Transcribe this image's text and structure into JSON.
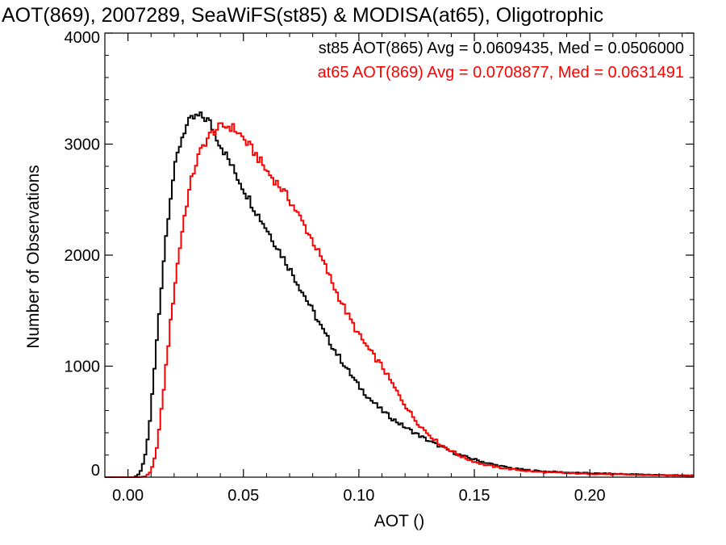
{
  "chart_data": {
    "type": "line",
    "title": "AOT(869), 2007289, SeaWiFS(st85) & MODISA(at65), Oligotrophic",
    "xlabel": "AOT ()",
    "ylabel": "Number of Observations",
    "xlim": [
      -0.01,
      0.245
    ],
    "ylim": [
      0,
      4000
    ],
    "xticks": [
      0.0,
      0.05,
      0.1,
      0.15,
      0.2
    ],
    "xtick_labels": [
      "0.00",
      "0.05",
      "0.10",
      "0.15",
      "0.20"
    ],
    "yticks": [
      0,
      1000,
      2000,
      3000,
      4000
    ],
    "ytick_labels": [
      "0",
      "1000",
      "2000",
      "3000",
      "4000"
    ],
    "legend_placement": "top-right",
    "grid": false,
    "series": [
      {
        "name": "st85 AOT(865) Avg = 0.0609435, Med = 0.0506000",
        "color": "#000000",
        "points": [
          [
            -0.01,
            0
          ],
          [
            0.0,
            0
          ],
          [
            0.003,
            0
          ],
          [
            0.005,
            30
          ],
          [
            0.007,
            140
          ],
          [
            0.009,
            400
          ],
          [
            0.011,
            850
          ],
          [
            0.013,
            1350
          ],
          [
            0.015,
            1850
          ],
          [
            0.017,
            2280
          ],
          [
            0.019,
            2620
          ],
          [
            0.021,
            2860
          ],
          [
            0.023,
            3040
          ],
          [
            0.025,
            3150
          ],
          [
            0.027,
            3210
          ],
          [
            0.029,
            3240
          ],
          [
            0.031,
            3250
          ],
          [
            0.033,
            3240
          ],
          [
            0.035,
            3210
          ],
          [
            0.037,
            3130
          ],
          [
            0.039,
            3040
          ],
          [
            0.041,
            2960
          ],
          [
            0.043,
            2880
          ],
          [
            0.045,
            2800
          ],
          [
            0.047,
            2720
          ],
          [
            0.05,
            2600
          ],
          [
            0.055,
            2410
          ],
          [
            0.06,
            2240
          ],
          [
            0.065,
            2060
          ],
          [
            0.07,
            1880
          ],
          [
            0.075,
            1690
          ],
          [
            0.08,
            1500
          ],
          [
            0.085,
            1300
          ],
          [
            0.09,
            1130
          ],
          [
            0.095,
            970
          ],
          [
            0.1,
            820
          ],
          [
            0.105,
            700
          ],
          [
            0.11,
            600
          ],
          [
            0.115,
            520
          ],
          [
            0.12,
            450
          ],
          [
            0.125,
            390
          ],
          [
            0.13,
            330
          ],
          [
            0.135,
            280
          ],
          [
            0.14,
            230
          ],
          [
            0.145,
            190
          ],
          [
            0.15,
            160
          ],
          [
            0.155,
            130
          ],
          [
            0.16,
            105
          ],
          [
            0.165,
            85
          ],
          [
            0.17,
            70
          ],
          [
            0.175,
            60
          ],
          [
            0.18,
            52
          ],
          [
            0.19,
            42
          ],
          [
            0.2,
            35
          ],
          [
            0.21,
            30
          ],
          [
            0.22,
            25
          ],
          [
            0.23,
            20
          ],
          [
            0.24,
            16
          ],
          [
            0.245,
            14
          ]
        ]
      },
      {
        "name": "at65 AOT(869) Avg = 0.0708877, Med = 0.0631491",
        "color": "#ff0000",
        "points": [
          [
            -0.01,
            0
          ],
          [
            0.0,
            0
          ],
          [
            0.005,
            0
          ],
          [
            0.008,
            10
          ],
          [
            0.01,
            50
          ],
          [
            0.012,
            200
          ],
          [
            0.014,
            500
          ],
          [
            0.016,
            900
          ],
          [
            0.018,
            1300
          ],
          [
            0.02,
            1680
          ],
          [
            0.022,
            2000
          ],
          [
            0.024,
            2290
          ],
          [
            0.026,
            2530
          ],
          [
            0.028,
            2720
          ],
          [
            0.03,
            2860
          ],
          [
            0.032,
            2960
          ],
          [
            0.034,
            3040
          ],
          [
            0.036,
            3090
          ],
          [
            0.038,
            3130
          ],
          [
            0.04,
            3150
          ],
          [
            0.042,
            3160
          ],
          [
            0.044,
            3160
          ],
          [
            0.046,
            3140
          ],
          [
            0.048,
            3100
          ],
          [
            0.05,
            3050
          ],
          [
            0.055,
            2920
          ],
          [
            0.06,
            2760
          ],
          [
            0.065,
            2640
          ],
          [
            0.07,
            2500
          ],
          [
            0.075,
            2320
          ],
          [
            0.08,
            2130
          ],
          [
            0.085,
            1920
          ],
          [
            0.09,
            1680
          ],
          [
            0.095,
            1470
          ],
          [
            0.1,
            1280
          ],
          [
            0.105,
            1130
          ],
          [
            0.11,
            1000
          ],
          [
            0.115,
            820
          ],
          [
            0.12,
            650
          ],
          [
            0.125,
            500
          ],
          [
            0.13,
            390
          ],
          [
            0.135,
            300
          ],
          [
            0.14,
            240
          ],
          [
            0.145,
            180
          ],
          [
            0.15,
            140
          ],
          [
            0.155,
            110
          ],
          [
            0.16,
            90
          ],
          [
            0.165,
            75
          ],
          [
            0.17,
            62
          ],
          [
            0.175,
            52
          ],
          [
            0.18,
            45
          ],
          [
            0.19,
            36
          ],
          [
            0.2,
            30
          ],
          [
            0.21,
            25
          ],
          [
            0.22,
            21
          ],
          [
            0.23,
            17
          ],
          [
            0.24,
            14
          ],
          [
            0.245,
            12
          ]
        ]
      }
    ]
  }
}
